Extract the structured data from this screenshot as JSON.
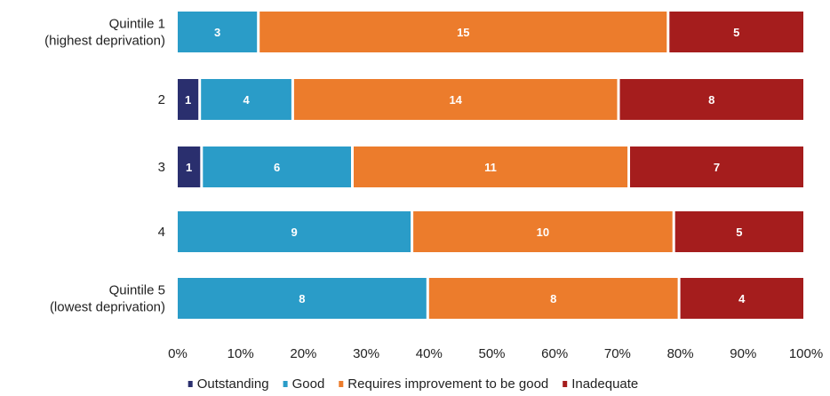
{
  "chart_data": {
    "type": "bar",
    "orientation": "horizontal",
    "stacking": "percent",
    "categories": [
      [
        "Quintile 1",
        "(highest deprivation)"
      ],
      [
        "2"
      ],
      [
        "3"
      ],
      [
        "4"
      ],
      [
        "Quintile 5",
        "(lowest deprivation)"
      ]
    ],
    "series": [
      {
        "name": "Outstanding",
        "color": "#2a2f6e",
        "values": [
          0,
          1,
          1,
          0,
          0
        ]
      },
      {
        "name": "Good",
        "color": "#2a9cc8",
        "values": [
          3,
          4,
          6,
          9,
          8
        ]
      },
      {
        "name": "Requires improvement to be good",
        "color": "#ec7c2c",
        "values": [
          15,
          14,
          11,
          10,
          8
        ]
      },
      {
        "name": "Inadequate",
        "color": "#a51d1d",
        "values": [
          5,
          8,
          7,
          5,
          4
        ]
      }
    ],
    "xlim": [
      0,
      100
    ],
    "xticks": [
      "0%",
      "10%",
      "20%",
      "30%",
      "40%",
      "50%",
      "60%",
      "70%",
      "80%",
      "90%",
      "100%"
    ],
    "grid": false,
    "legend": "bottom"
  }
}
